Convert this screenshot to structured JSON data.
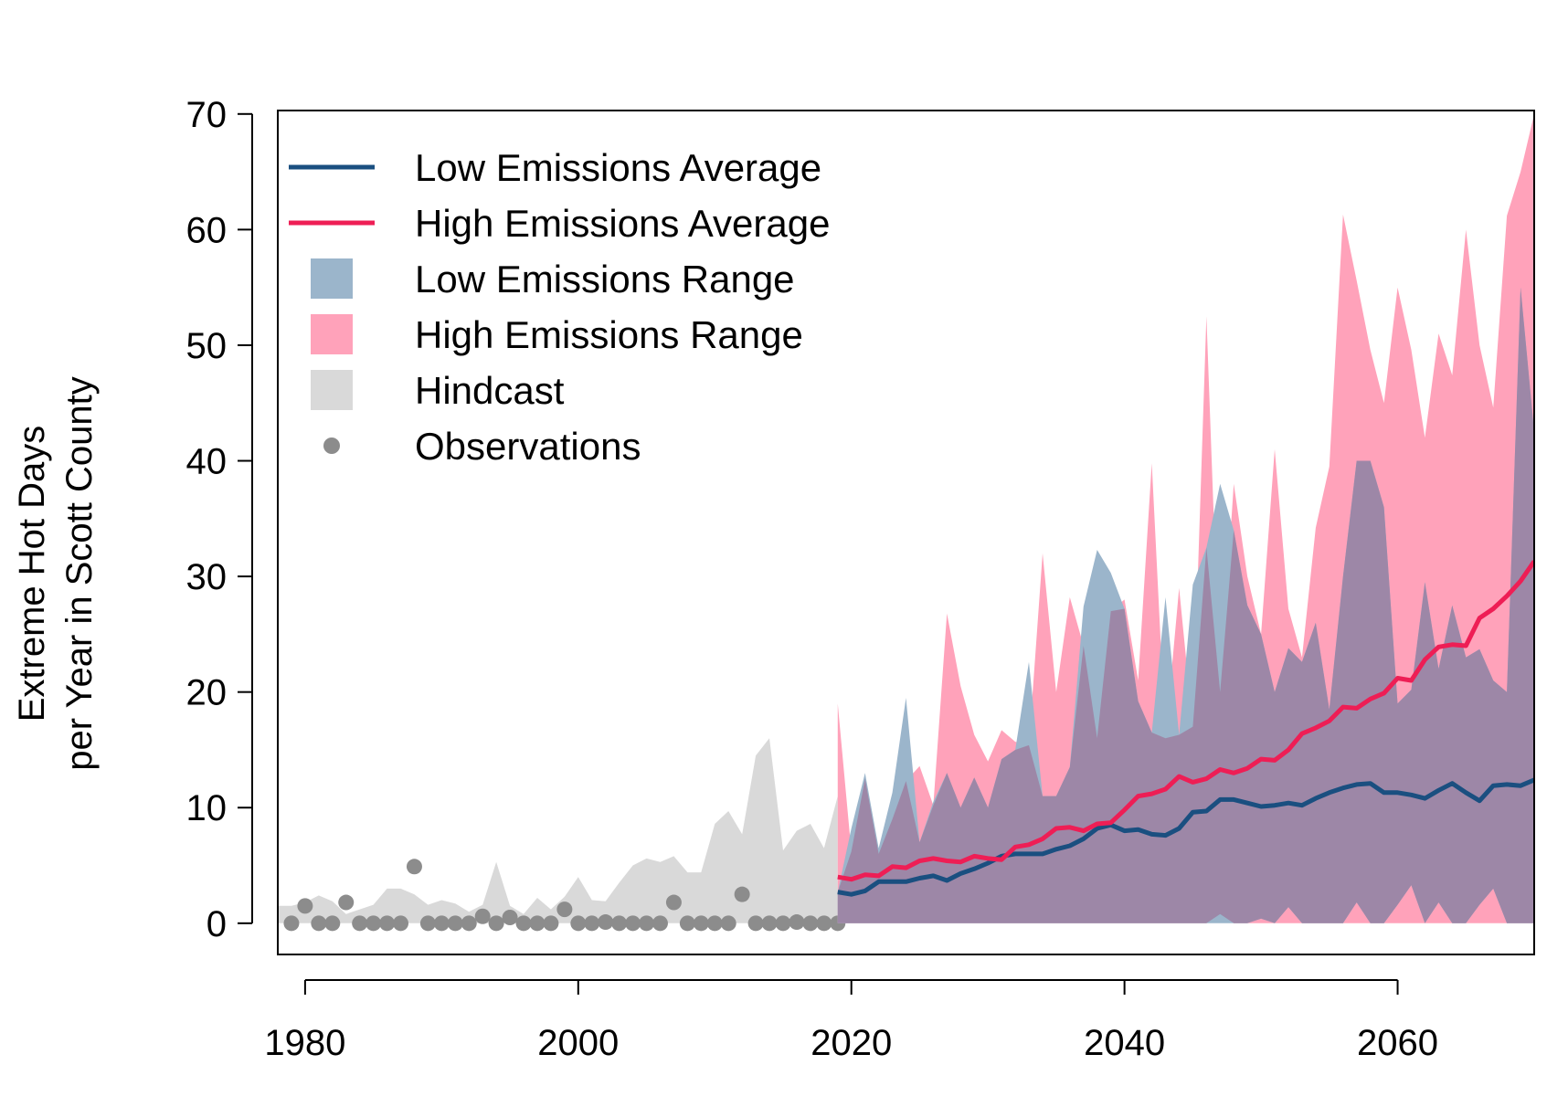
{
  "chart_data": {
    "type": "line",
    "title": "",
    "xlabel": "",
    "ylabel": [
      "Extreme Hot Days",
      "per Year in Scott County"
    ],
    "xlim": [
      1978,
      2070
    ],
    "ylim": [
      -2.7,
      70.3
    ],
    "x_ticks": [
      1980,
      2000,
      2020,
      2040,
      2060
    ],
    "y_ticks": [
      0,
      10,
      20,
      30,
      40,
      50,
      60,
      70
    ],
    "grid": false,
    "legend_position": "top-left",
    "colors": {
      "low_avg": "#1a4f80",
      "high_avg": "#ee1e55",
      "low_range": "#9bb5cb",
      "high_range": "#ffa2ba",
      "overlap": "#9d87a7",
      "hindcast": "#d9d9d9",
      "observations": "#8c8c8c"
    },
    "legend": [
      {
        "label": "Low Emissions Average",
        "kind": "line",
        "color_key": "low_avg"
      },
      {
        "label": "High Emissions Average",
        "kind": "line",
        "color_key": "high_avg"
      },
      {
        "label": "Low Emissions Range",
        "kind": "box",
        "color_key": "low_range"
      },
      {
        "label": "High Emissions Range",
        "kind": "box",
        "color_key": "high_range"
      },
      {
        "label": "Hindcast",
        "kind": "box",
        "color_key": "hindcast"
      },
      {
        "label": "Observations",
        "kind": "point",
        "color_key": "observations"
      }
    ],
    "series": [
      {
        "name": "Hindcast",
        "kind": "range",
        "x": [
          1978,
          1979,
          1980,
          1981,
          1982,
          1983,
          1984,
          1985,
          1986,
          1987,
          1988,
          1989,
          1990,
          1991,
          1992,
          1993,
          1994,
          1995,
          1996,
          1997,
          1998,
          1999,
          2000,
          2001,
          2002,
          2003,
          2004,
          2005,
          2006,
          2007,
          2008,
          2009,
          2010,
          2011,
          2012,
          2013,
          2014,
          2015,
          2016,
          2017,
          2018,
          2019
        ],
        "upper": [
          1.5,
          1.5,
          1.8,
          2.4,
          1.9,
          0.8,
          1.2,
          1.6,
          3.0,
          3.0,
          2.5,
          1.6,
          2.0,
          1.7,
          1.0,
          1.6,
          5.3,
          1.5,
          0.8,
          2.2,
          1.2,
          2.3,
          4.0,
          2.0,
          1.9,
          3.5,
          5.0,
          5.6,
          5.3,
          5.8,
          4.4,
          4.4,
          8.6,
          9.7,
          7.7,
          14.5,
          16.0,
          6.3,
          8.0,
          8.6,
          6.5,
          11.0
        ],
        "lower": [
          0,
          0,
          0,
          0,
          0,
          0,
          0,
          0,
          0,
          0,
          0,
          0,
          0,
          0,
          0,
          0,
          0,
          0,
          0,
          0,
          0,
          0,
          0,
          0,
          0,
          0,
          0,
          0,
          0,
          0,
          0,
          0,
          0,
          0,
          0,
          0,
          0,
          0,
          0,
          0,
          0,
          0
        ]
      },
      {
        "name": "Observations",
        "kind": "points",
        "x": [
          1979,
          1980,
          1981,
          1982,
          1983,
          1984,
          1985,
          1986,
          1987,
          1988,
          1989,
          1990,
          1991,
          1992,
          1993,
          1994,
          1995,
          1996,
          1997,
          1998,
          1999,
          2000,
          2001,
          2002,
          2003,
          2004,
          2005,
          2006,
          2007,
          2008,
          2009,
          2010,
          2011,
          2012,
          2013,
          2014,
          2015,
          2016,
          2017,
          2018,
          2019
        ],
        "y": [
          0,
          1.5,
          0,
          0,
          1.8,
          0,
          0,
          0,
          0,
          4.9,
          0,
          0,
          0,
          0,
          0.6,
          0,
          0.5,
          0,
          0,
          0,
          1.2,
          0,
          0,
          0.1,
          0,
          0,
          0,
          0,
          1.8,
          0,
          0,
          0,
          0,
          2.5,
          0,
          0,
          0,
          0.1,
          0,
          0,
          0
        ]
      },
      {
        "name": "High Emissions Range",
        "kind": "range",
        "x": [
          2019,
          2020,
          2021,
          2022,
          2023,
          2024,
          2025,
          2026,
          2027,
          2028,
          2029,
          2030,
          2031,
          2032,
          2033,
          2034,
          2035,
          2036,
          2037,
          2038,
          2039,
          2040,
          2041,
          2042,
          2043,
          2044,
          2045,
          2046,
          2047,
          2048,
          2049,
          2050,
          2051,
          2052,
          2053,
          2054,
          2055,
          2056,
          2057,
          2058,
          2059,
          2060,
          2061,
          2062,
          2063,
          2064,
          2065,
          2066,
          2067,
          2068,
          2069,
          2070
        ],
        "upper": [
          19.0,
          6.2,
          12.5,
          6.0,
          9.0,
          12.3,
          13.6,
          10.2,
          26.8,
          20.5,
          16.3,
          14.0,
          16.7,
          15.7,
          15.4,
          32.0,
          20.0,
          28.2,
          24.0,
          16.0,
          27.0,
          28.0,
          21.0,
          39.8,
          16.0,
          29.0,
          17.0,
          52.5,
          20.0,
          38.0,
          30.0,
          25.0,
          41.0,
          27.2,
          23.0,
          34.2,
          39.5,
          61.3,
          55.6,
          49.6,
          45.0,
          55.0,
          49.6,
          42.0,
          51.0,
          47.4,
          60.0,
          50.0,
          44.6,
          61.2,
          65.0,
          70.0
        ],
        "lower": [
          0,
          0,
          0,
          0,
          0,
          0,
          0,
          0,
          0,
          0,
          0,
          0,
          0,
          0,
          0,
          0,
          0,
          0,
          0,
          0,
          0,
          0,
          0,
          0,
          0,
          0,
          0,
          0,
          0.8,
          0,
          0,
          0,
          0,
          0,
          0,
          0,
          0,
          0,
          0,
          0,
          0,
          0,
          0,
          0,
          0,
          0,
          0,
          0,
          0,
          0,
          0,
          0
        ]
      },
      {
        "name": "Low Emissions Range",
        "kind": "range",
        "x": [
          2019,
          2020,
          2021,
          2022,
          2023,
          2024,
          2025,
          2026,
          2027,
          2028,
          2029,
          2030,
          2031,
          2032,
          2033,
          2034,
          2035,
          2036,
          2037,
          2038,
          2039,
          2040,
          2041,
          2042,
          2043,
          2044,
          2045,
          2046,
          2047,
          2048,
          2049,
          2050,
          2051,
          2052,
          2053,
          2054,
          2055,
          2056,
          2057,
          2058,
          2059,
          2060,
          2061,
          2062,
          2063,
          2064,
          2065,
          2066,
          2067,
          2068,
          2069,
          2070
        ],
        "upper": [
          2.7,
          8.2,
          13.0,
          6.5,
          11.3,
          19.5,
          7.0,
          10.5,
          13.0,
          10.0,
          12.6,
          10.0,
          14.2,
          15.0,
          22.6,
          11.0,
          11.0,
          13.5,
          27.4,
          32.3,
          30.3,
          27.2,
          19.2,
          16.5,
          28.2,
          16.3,
          29.3,
          32.5,
          38.0,
          34.0,
          27.5,
          25.0,
          20.0,
          23.8,
          22.6,
          26.0,
          18.5,
          30.0,
          40.0,
          40.0,
          36.0,
          19.0,
          20.2,
          29.5,
          22.0,
          27.5,
          23.0,
          23.7,
          21.0,
          20.0,
          55.0,
          42.5
        ],
        "lower": [
          0,
          0,
          0,
          0,
          0,
          0,
          0,
          0,
          0,
          0,
          0,
          0,
          0,
          0,
          0,
          0,
          0,
          0,
          0,
          0,
          0,
          0,
          0,
          0,
          0,
          0,
          0,
          0,
          0,
          0,
          0,
          0.4,
          0,
          1.4,
          0,
          0,
          0,
          0,
          1.8,
          0,
          0,
          1.6,
          3.3,
          0,
          1.8,
          0,
          0,
          1.6,
          3.0,
          0,
          0,
          0
        ]
      },
      {
        "name": "High Emissions Average",
        "kind": "line",
        "x": [
          2019,
          2020,
          2021,
          2022,
          2023,
          2024,
          2025,
          2026,
          2027,
          2028,
          2029,
          2030,
          2031,
          2032,
          2033,
          2034,
          2035,
          2036,
          2037,
          2038,
          2039,
          2040,
          2041,
          2042,
          2043,
          2044,
          2045,
          2046,
          2047,
          2048,
          2049,
          2050,
          2051,
          2052,
          2053,
          2054,
          2055,
          2056,
          2057,
          2058,
          2059,
          2060,
          2061,
          2062,
          2063,
          2064,
          2065,
          2066,
          2067,
          2068,
          2069,
          2070
        ],
        "y": [
          4.0,
          3.8,
          4.2,
          4.1,
          4.9,
          4.8,
          5.4,
          5.6,
          5.4,
          5.3,
          5.8,
          5.6,
          5.5,
          6.6,
          6.8,
          7.3,
          8.2,
          8.3,
          8.0,
          8.6,
          8.7,
          9.8,
          11.0,
          11.2,
          11.6,
          12.7,
          12.2,
          12.5,
          13.3,
          13.0,
          13.4,
          14.2,
          14.1,
          15.0,
          16.4,
          16.9,
          17.5,
          18.7,
          18.6,
          19.4,
          19.9,
          21.2,
          21.0,
          22.8,
          23.9,
          24.1,
          24.0,
          26.4,
          27.2,
          28.3,
          29.6,
          31.3
        ]
      },
      {
        "name": "Low Emissions Average",
        "kind": "line",
        "x": [
          2019,
          2020,
          2021,
          2022,
          2023,
          2024,
          2025,
          2026,
          2027,
          2028,
          2029,
          2030,
          2031,
          2032,
          2033,
          2034,
          2035,
          2036,
          2037,
          2038,
          2039,
          2040,
          2041,
          2042,
          2043,
          2044,
          2045,
          2046,
          2047,
          2048,
          2049,
          2050,
          2051,
          2052,
          2053,
          2054,
          2055,
          2056,
          2057,
          2058,
          2059,
          2060,
          2061,
          2062,
          2063,
          2064,
          2065,
          2066,
          2067,
          2068,
          2069,
          2070
        ],
        "y": [
          2.7,
          2.5,
          2.8,
          3.6,
          3.6,
          3.6,
          3.9,
          4.1,
          3.7,
          4.3,
          4.7,
          5.2,
          5.8,
          6.0,
          6.0,
          6.0,
          6.4,
          6.7,
          7.3,
          8.2,
          8.5,
          8.0,
          8.1,
          7.7,
          7.6,
          8.2,
          9.6,
          9.7,
          10.7,
          10.7,
          10.4,
          10.1,
          10.2,
          10.4,
          10.2,
          10.8,
          11.3,
          11.7,
          12.0,
          12.1,
          11.3,
          11.3,
          11.1,
          10.8,
          11.5,
          12.1,
          11.3,
          10.6,
          11.9,
          12.0,
          11.9,
          12.4
        ]
      }
    ]
  }
}
